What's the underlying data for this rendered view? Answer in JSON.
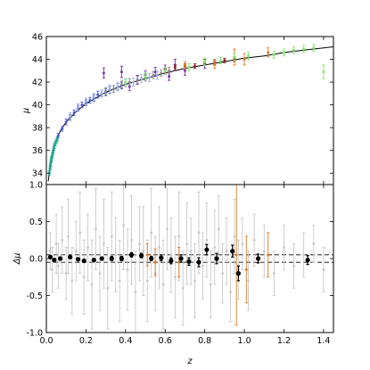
{
  "chart_data": [
    {
      "type": "scatter",
      "title": "",
      "ylabel": "μ",
      "xlim": [
        0.0,
        1.45
      ],
      "ylim": [
        33,
        46
      ],
      "yticks": [
        34,
        36,
        38,
        40,
        42,
        44,
        46
      ],
      "grid": false,
      "series": [
        {
          "kind": "model-curve",
          "color": "#000000",
          "x": [
            0.01,
            0.02,
            0.03,
            0.05,
            0.07,
            0.1,
            0.15,
            0.2,
            0.3,
            0.4,
            0.5,
            0.6,
            0.7,
            0.8,
            0.9,
            1.0,
            1.1,
            1.2,
            1.3,
            1.4,
            1.45
          ],
          "y": [
            33.3,
            34.9,
            35.8,
            36.9,
            37.7,
            38.5,
            39.4,
            40.1,
            41.1,
            41.8,
            42.3,
            42.8,
            43.2,
            43.5,
            43.8,
            44.1,
            44.3,
            44.6,
            44.8,
            45.0,
            45.1
          ]
        },
        {
          "kind": "supernovae",
          "color": "#1fa38b",
          "x": [
            0.015,
            0.018,
            0.02,
            0.022,
            0.025,
            0.027,
            0.03,
            0.033,
            0.035,
            0.038,
            0.04,
            0.045,
            0.05,
            0.055
          ],
          "y": [
            34.0,
            34.4,
            34.6,
            34.9,
            35.2,
            35.3,
            35.6,
            35.8,
            36.0,
            36.2,
            36.4,
            36.6,
            36.8,
            37.0
          ],
          "err": [
            0.2,
            0.2,
            0.2,
            0.2,
            0.2,
            0.2,
            0.2,
            0.2,
            0.2,
            0.2,
            0.2,
            0.2,
            0.2,
            0.2
          ]
        },
        {
          "kind": "supernovae",
          "color": "#4a5ad6",
          "x": [
            0.06,
            0.08,
            0.1,
            0.12,
            0.14,
            0.16,
            0.18,
            0.2,
            0.22,
            0.24,
            0.26,
            0.28,
            0.3,
            0.32,
            0.34,
            0.36,
            0.38
          ],
          "y": [
            37.3,
            37.9,
            38.5,
            38.9,
            39.3,
            39.7,
            40.0,
            40.2,
            40.4,
            40.6,
            40.9,
            41.0,
            41.1,
            41.3,
            41.4,
            41.6,
            41.7
          ],
          "err": [
            0.2,
            0.2,
            0.25,
            0.25,
            0.25,
            0.25,
            0.25,
            0.25,
            0.25,
            0.3,
            0.3,
            0.3,
            0.3,
            0.3,
            0.3,
            0.3,
            0.3
          ]
        },
        {
          "kind": "supernovae",
          "color": "#a0aee8",
          "x": [
            0.12,
            0.16,
            0.2,
            0.24,
            0.28,
            0.32,
            0.36,
            0.4,
            0.44,
            0.48,
            0.52,
            0.56
          ],
          "y": [
            39.0,
            39.8,
            40.3,
            40.7,
            41.0,
            41.4,
            41.6,
            41.9,
            42.0,
            42.3,
            42.4,
            42.6
          ],
          "err": [
            0.3,
            0.3,
            0.3,
            0.3,
            0.3,
            0.35,
            0.35,
            0.35,
            0.35,
            0.35,
            0.35,
            0.35
          ]
        },
        {
          "kind": "supernovae",
          "color": "#7b2fb5",
          "x": [
            0.29,
            0.38,
            0.42,
            0.46,
            0.5,
            0.55,
            0.6,
            0.62,
            0.65,
            0.7,
            0.8
          ],
          "y": [
            42.8,
            42.9,
            41.6,
            42.2,
            42.6,
            42.9,
            43.1,
            42.5,
            43.5,
            43.0,
            43.6
          ],
          "err": [
            0.45,
            0.5,
            0.35,
            0.4,
            0.4,
            0.4,
            0.4,
            0.35,
            0.5,
            0.4,
            0.4
          ]
        },
        {
          "kind": "supernovae",
          "color": "#8e8e8e",
          "x": [
            0.3,
            0.34,
            0.38,
            0.42,
            0.46,
            0.5,
            0.54,
            0.58,
            0.62
          ],
          "y": [
            41.2,
            41.4,
            41.8,
            42.0,
            42.2,
            42.4,
            42.6,
            42.8,
            43.0
          ],
          "err": [
            0.3,
            0.3,
            0.3,
            0.3,
            0.3,
            0.3,
            0.3,
            0.3,
            0.3
          ]
        },
        {
          "kind": "supernovae",
          "color": "#8b1c1c",
          "x": [
            0.6,
            0.65,
            0.7,
            0.75,
            0.8,
            0.85,
            0.9,
            0.95
          ],
          "y": [
            43.0,
            43.3,
            43.4,
            43.4,
            43.8,
            43.7,
            43.9,
            44.0
          ],
          "err": [
            0.2,
            0.2,
            0.2,
            0.2,
            0.2,
            0.2,
            0.2,
            0.2
          ]
        },
        {
          "kind": "supernovae",
          "color": "#e07b22",
          "x": [
            0.7,
            0.85,
            0.95,
            1.0,
            1.12
          ],
          "y": [
            43.5,
            43.6,
            44.2,
            44.0,
            44.6
          ],
          "err": [
            0.3,
            0.4,
            0.7,
            0.5,
            0.4
          ]
        },
        {
          "kind": "supernovae",
          "color": "#7ee86a",
          "x": [
            0.4,
            0.5,
            0.6,
            0.72,
            0.8,
            0.88,
            0.95,
            1.02,
            1.15,
            1.2,
            1.25,
            1.3,
            1.35,
            1.4
          ],
          "y": [
            42.0,
            42.5,
            43.0,
            43.3,
            43.8,
            43.9,
            44.2,
            44.3,
            44.4,
            44.6,
            44.8,
            44.9,
            45.0,
            42.9
          ],
          "err": [
            0.3,
            0.3,
            0.3,
            0.3,
            0.3,
            0.3,
            0.3,
            0.3,
            0.3,
            0.3,
            0.3,
            0.3,
            0.3,
            0.6
          ]
        }
      ]
    },
    {
      "type": "scatter",
      "title": "",
      "xlabel": "z",
      "ylabel": "Δμ",
      "xlim": [
        0.0,
        1.45
      ],
      "ylim": [
        -1.0,
        1.0
      ],
      "xticks": [
        0.0,
        0.2,
        0.4,
        0.6,
        0.8,
        1.0,
        1.2,
        1.4
      ],
      "yticks": [
        -1.0,
        -0.5,
        0.0,
        0.5,
        1.0
      ],
      "grid": false,
      "reference_lines": [
        0.05,
        -0.05
      ],
      "series": [
        {
          "kind": "residuals",
          "color": "#c8c8c8",
          "x": [
            0.02,
            0.03,
            0.05,
            0.06,
            0.08,
            0.1,
            0.11,
            0.13,
            0.15,
            0.17,
            0.19,
            0.21,
            0.23,
            0.25,
            0.27,
            0.29,
            0.31,
            0.33,
            0.35,
            0.37,
            0.39,
            0.41,
            0.43,
            0.45,
            0.47,
            0.49,
            0.51,
            0.53,
            0.55,
            0.57,
            0.59,
            0.61,
            0.63,
            0.65,
            0.67,
            0.69,
            0.71,
            0.73,
            0.75,
            0.77,
            0.79,
            0.81,
            0.83,
            0.85,
            0.87,
            0.89,
            0.91,
            0.93,
            0.95,
            0.97,
            0.99,
            1.02,
            1.05,
            1.1,
            1.15,
            1.2,
            1.25,
            1.3,
            1.35,
            1.4
          ],
          "y": [
            0.1,
            -0.15,
            0.2,
            -0.1,
            0.25,
            -0.2,
            0.3,
            -0.3,
            0.1,
            0.35,
            -0.25,
            0.15,
            -0.35,
            0.4,
            -0.2,
            0.2,
            -0.4,
            0.3,
            0.05,
            -0.3,
            0.45,
            -0.15,
            0.25,
            -0.45,
            0.2,
            0.1,
            -0.3,
            0.35,
            -0.2,
            0.15,
            -0.35,
            0.4,
            0.05,
            -0.25,
            0.3,
            -0.4,
            0.2,
            0.1,
            -0.3,
            0.35,
            -0.1,
            0.25,
            -0.35,
            0.15,
            0.4,
            -0.2,
            0.1,
            -0.45,
            0.3,
            -0.15,
            0.2,
            -0.3,
            0.25,
            0.1,
            -0.2,
            0.15,
            -0.1,
            0.05,
            0.2,
            -0.15
          ],
          "err": [
            0.25,
            0.3,
            0.4,
            0.3,
            0.45,
            0.35,
            0.5,
            0.45,
            0.4,
            0.55,
            0.5,
            0.45,
            0.6,
            0.55,
            0.5,
            0.6,
            0.55,
            0.6,
            0.5,
            0.55,
            0.6,
            0.55,
            0.6,
            0.55,
            0.5,
            0.6,
            0.55,
            0.6,
            0.5,
            0.55,
            0.6,
            0.55,
            0.5,
            0.55,
            0.6,
            0.5,
            0.55,
            0.45,
            0.5,
            0.55,
            0.45,
            0.5,
            0.45,
            0.5,
            0.45,
            0.4,
            0.45,
            0.4,
            0.5,
            0.4,
            0.35,
            0.4,
            0.35,
            0.35,
            0.3,
            0.3,
            0.3,
            0.3,
            0.25,
            0.3
          ]
        },
        {
          "kind": "outliers",
          "color": "#e07b22",
          "x": [
            0.51,
            0.55,
            0.67,
            0.96,
            1.01,
            1.12
          ],
          "y": [
            0.05,
            -0.05,
            -0.05,
            0.05,
            -0.15,
            0.05
          ],
          "err": [
            0.15,
            0.18,
            0.2,
            0.95,
            0.45,
            0.3
          ]
        },
        {
          "kind": "binned-means",
          "color": "#000000",
          "x": [
            0.02,
            0.04,
            0.07,
            0.12,
            0.16,
            0.19,
            0.24,
            0.28,
            0.33,
            0.38,
            0.43,
            0.48,
            0.53,
            0.58,
            0.63,
            0.68,
            0.72,
            0.77,
            0.81,
            0.86,
            0.94,
            0.97,
            1.07,
            1.32
          ],
          "y": [
            0.02,
            -0.02,
            0.0,
            0.02,
            -0.01,
            -0.03,
            -0.02,
            0.0,
            0.0,
            0.0,
            0.05,
            0.04,
            0.0,
            0.01,
            -0.03,
            0.0,
            -0.04,
            -0.05,
            0.12,
            0.0,
            0.1,
            -0.2,
            0.0,
            -0.02
          ],
          "err": [
            0.02,
            0.02,
            0.02,
            0.02,
            0.02,
            0.02,
            0.02,
            0.02,
            0.03,
            0.03,
            0.03,
            0.03,
            0.03,
            0.04,
            0.04,
            0.05,
            0.05,
            0.06,
            0.07,
            0.07,
            0.08,
            0.1,
            0.06,
            0.06
          ]
        }
      ]
    }
  ]
}
